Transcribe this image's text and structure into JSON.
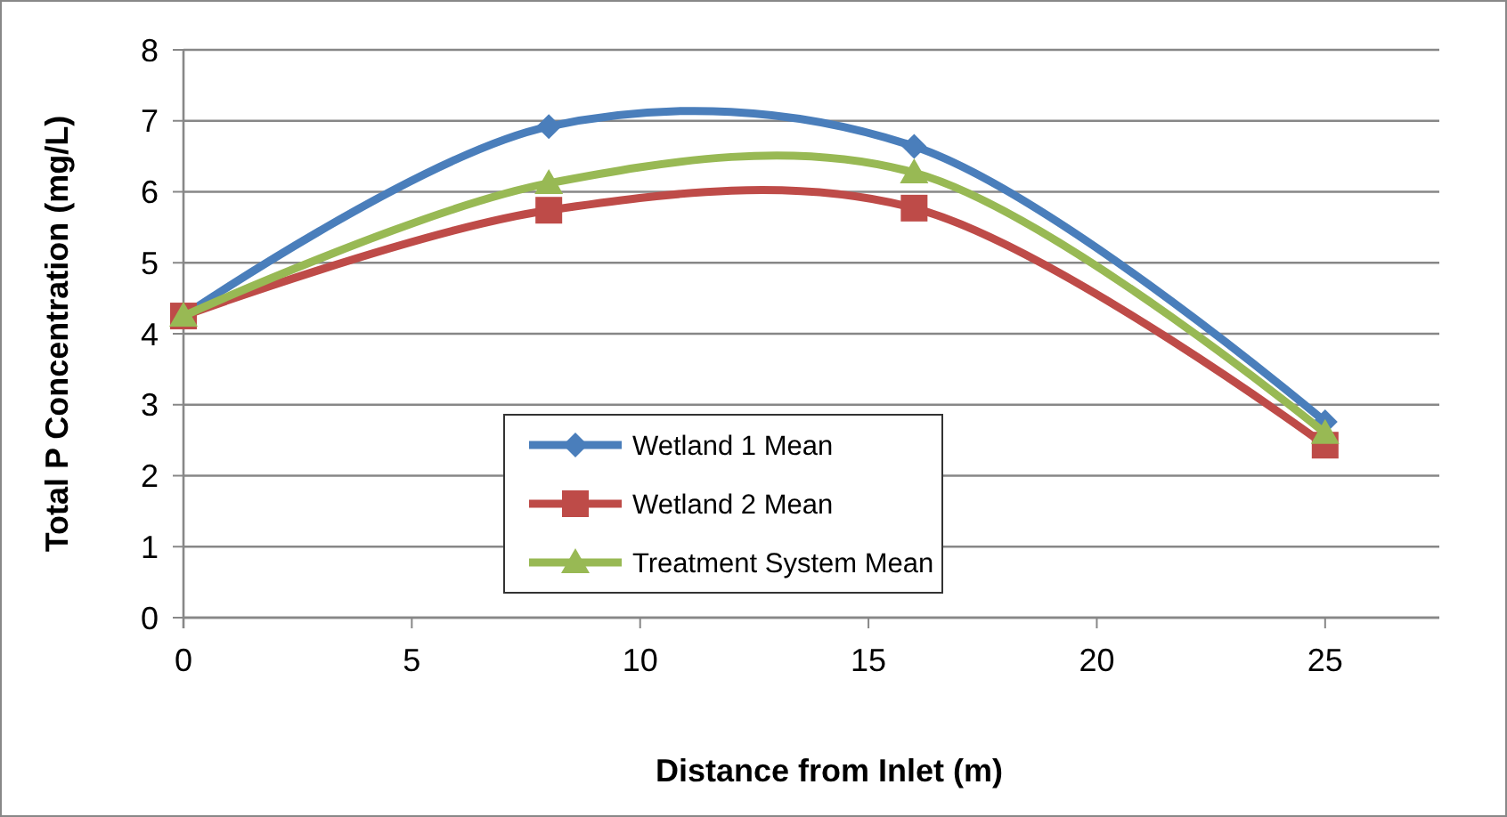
{
  "chart_data": {
    "type": "line",
    "xlabel": "Distance from Inlet (m)",
    "ylabel": "Total P Concentration (mg/L)",
    "x": [
      0,
      8,
      16,
      25
    ],
    "series": [
      {
        "name": "Wetland 1 Mean",
        "color": "#4a7ebb",
        "marker": "diamond",
        "values": [
          4.25,
          6.92,
          6.64,
          2.76
        ]
      },
      {
        "name": "Wetland 2 Mean",
        "color": "#be4b48",
        "marker": "square",
        "values": [
          4.25,
          5.74,
          5.77,
          2.43
        ]
      },
      {
        "name": "Treatment System Mean",
        "color": "#98b954",
        "marker": "triangle",
        "values": [
          4.25,
          6.12,
          6.27,
          2.6
        ]
      }
    ],
    "xlim": [
      0,
      27.5
    ],
    "xticks": [
      0,
      5,
      10,
      15,
      20,
      25
    ],
    "ylim": [
      0,
      8
    ],
    "yticks": [
      0,
      1,
      2,
      3,
      4,
      5,
      6,
      7,
      8
    ],
    "grid": "y",
    "legend": "center"
  }
}
